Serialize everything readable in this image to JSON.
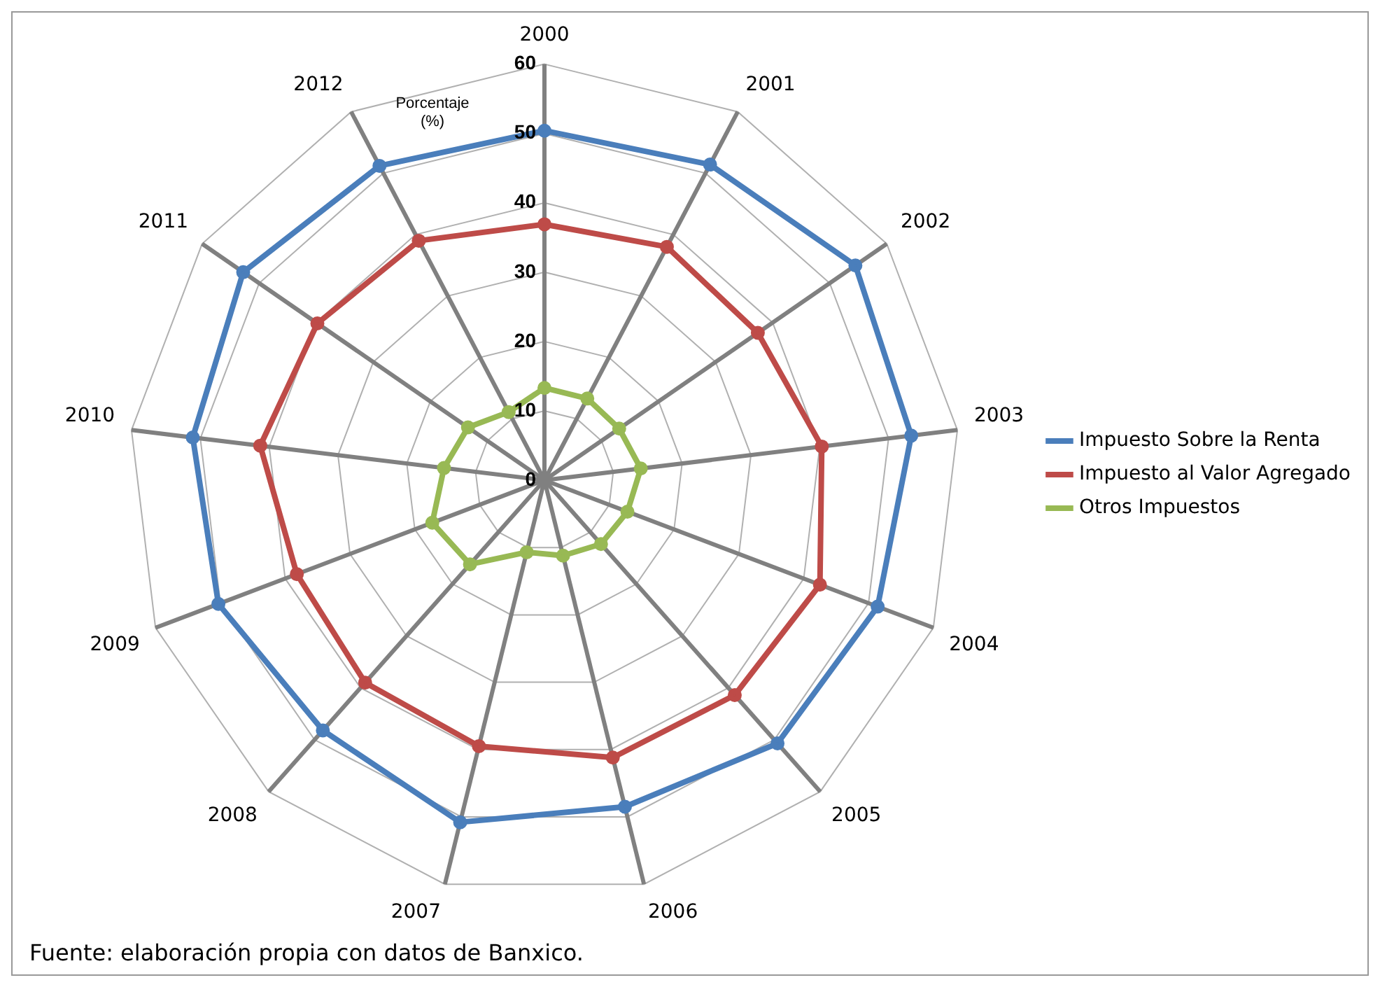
{
  "chart_data": {
    "type": "radar",
    "ylabel": "Porcentaje (%)",
    "categories": [
      "2000",
      "2001",
      "2002",
      "2003",
      "2004",
      "2005",
      "2006",
      "2007",
      "2008",
      "2009",
      "2010",
      "2011",
      "2012"
    ],
    "series": [
      {
        "name": "Impuesto Sobre la Renta",
        "color": "#4a7ebb",
        "values": [
          50.4,
          51.4,
          54.5,
          53.3,
          51.4,
          50.7,
          48.5,
          50.8,
          48.2,
          50.3,
          51.1,
          52.8,
          51.2
        ]
      },
      {
        "name": "Impuesto al Valor Agregado",
        "color": "#be4b48",
        "values": [
          36.9,
          38,
          37.4,
          40.3,
          42.5,
          41.4,
          41.2,
          39.5,
          39,
          38.2,
          41.3,
          39.8,
          39
        ]
      },
      {
        "name": "Otros Impuestos",
        "color": "#98b954",
        "values": [
          13.3,
          13.3,
          13.1,
          14,
          12.8,
          12.3,
          11.2,
          10.7,
          16.2,
          17.3,
          14.6,
          13.4,
          11.1
        ]
      }
    ],
    "ylim": [
      0,
      60
    ],
    "yticks": [
      0,
      10,
      20,
      30,
      40,
      50,
      60
    ],
    "grid": true,
    "legend": "right",
    "marker": "circle",
    "line_style": "solid",
    "annotations": [
      "Fuente: elaboración propia con datos de Banxico."
    ]
  }
}
